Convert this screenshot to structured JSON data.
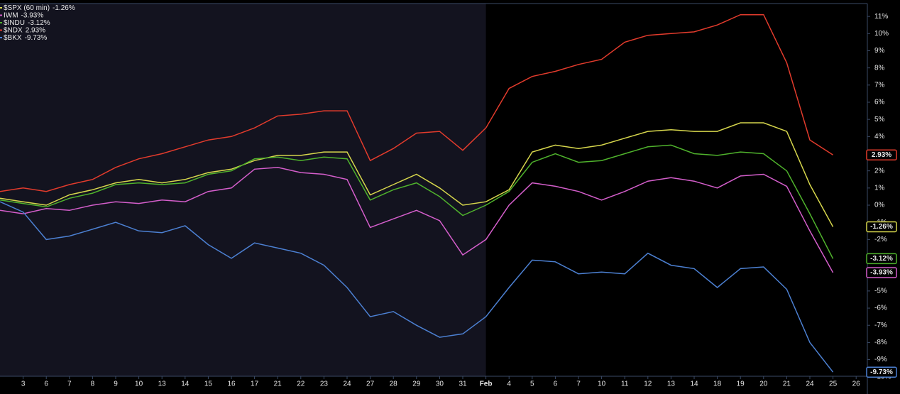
{
  "chart_data": {
    "type": "line",
    "categories": [
      null,
      "3",
      "6",
      "7",
      "8",
      "9",
      "10",
      "13",
      "14",
      "15",
      "16",
      "17",
      "21",
      "22",
      "23",
      "24",
      "27",
      "28",
      "29",
      "30",
      "31",
      "Feb",
      "4",
      "5",
      "6",
      "7",
      "10",
      "11",
      "12",
      "13",
      "14",
      "18",
      "19",
      "20",
      "21",
      "24",
      "25",
      "26"
    ],
    "series": [
      {
        "name": "$SPX (60 min)",
        "color": "#d6d64c",
        "values": [
          0.4,
          0.2,
          0,
          0.6,
          0.9,
          1.3,
          1.5,
          1.3,
          1.5,
          1.9,
          2.1,
          2.6,
          2.9,
          2.9,
          3.1,
          3.1,
          0.6,
          1.2,
          1.8,
          1.0,
          0,
          0.2,
          0.9,
          3.1,
          3.5,
          3.3,
          3.5,
          3.9,
          4.3,
          4.4,
          4.3,
          4.3,
          4.8,
          4.8,
          4.3,
          1.2,
          -1.26,
          null
        ],
        "value_labels": [
          null,
          null,
          null,
          null,
          null,
          null,
          null,
          null,
          null,
          null,
          null,
          null,
          null,
          null,
          null,
          null,
          null,
          null,
          null,
          null,
          null,
          null,
          null,
          null,
          null,
          null,
          null,
          null,
          null,
          null,
          null,
          null,
          null,
          null,
          null,
          null,
          "-1.26%",
          null
        ]
      },
      {
        "name": "IWM",
        "color": "#d45ecb",
        "values": [
          -0.3,
          -0.5,
          -0.2,
          -0.3,
          0,
          0.2,
          0.1,
          0.3,
          0.2,
          0.8,
          1.0,
          2.1,
          2.2,
          1.9,
          1.8,
          1.5,
          -1.3,
          -0.8,
          -0.3,
          -0.9,
          -2.9,
          -2.0,
          0,
          1.3,
          1.1,
          0.8,
          0.3,
          0.8,
          1.4,
          1.6,
          1.4,
          1.0,
          1.7,
          1.8,
          1.1,
          -1.5,
          -3.93,
          null
        ],
        "value_labels": [
          null,
          null,
          null,
          null,
          null,
          null,
          null,
          null,
          null,
          null,
          null,
          null,
          null,
          null,
          null,
          null,
          null,
          null,
          null,
          null,
          null,
          null,
          null,
          null,
          null,
          null,
          null,
          null,
          null,
          null,
          null,
          null,
          null,
          null,
          null,
          null,
          "-3.93%",
          null
        ]
      },
      {
        "name": "$INDU",
        "color": "#4fb22c",
        "values": [
          0.3,
          0.1,
          -0.1,
          0.4,
          0.7,
          1.2,
          1.3,
          1.2,
          1.3,
          1.8,
          2.0,
          2.7,
          2.8,
          2.6,
          2.8,
          2.7,
          0.3,
          0.9,
          1.3,
          0.5,
          -0.6,
          0,
          0.8,
          2.5,
          3.0,
          2.5,
          2.6,
          3.0,
          3.4,
          3.5,
          3.0,
          2.9,
          3.1,
          3.0,
          2.0,
          -0.5,
          -3.12,
          null
        ],
        "value_labels": [
          null,
          null,
          null,
          null,
          null,
          null,
          null,
          null,
          null,
          null,
          null,
          null,
          null,
          null,
          null,
          null,
          null,
          null,
          null,
          null,
          null,
          null,
          null,
          null,
          null,
          null,
          null,
          null,
          null,
          null,
          null,
          null,
          null,
          null,
          null,
          null,
          "-3.12%",
          null
        ]
      },
      {
        "name": "$NDX",
        "color": "#e23b2c",
        "values": [
          0.8,
          1.0,
          0.8,
          1.2,
          1.5,
          2.2,
          2.7,
          3.0,
          3.4,
          3.8,
          4.0,
          4.5,
          5.2,
          5.3,
          5.5,
          5.5,
          2.6,
          3.3,
          4.2,
          4.3,
          3.2,
          4.5,
          6.8,
          7.5,
          7.8,
          8.2,
          8.5,
          9.5,
          9.9,
          10.0,
          10.1,
          10.5,
          11.1,
          11.1,
          8.3,
          3.8,
          2.93,
          null
        ],
        "value_labels": [
          null,
          null,
          null,
          null,
          null,
          null,
          null,
          null,
          null,
          null,
          null,
          null,
          null,
          null,
          null,
          null,
          null,
          null,
          null,
          null,
          null,
          null,
          null,
          null,
          null,
          null,
          null,
          null,
          null,
          null,
          null,
          null,
          null,
          null,
          null,
          null,
          "2.93%",
          null
        ]
      },
      {
        "name": "$BKX",
        "color": "#4c80d2",
        "values": [
          0.2,
          -0.4,
          -2.0,
          -1.8,
          -1.4,
          -1.0,
          -1.5,
          -1.6,
          -1.2,
          -2.3,
          -3.1,
          -2.2,
          -2.5,
          -2.8,
          -3.5,
          -4.8,
          -6.5,
          -6.2,
          -7.0,
          -7.7,
          -7.5,
          -6.5,
          -4.8,
          -3.2,
          -3.3,
          -4.0,
          -3.9,
          -4.0,
          -2.8,
          -3.5,
          -3.7,
          -4.8,
          -3.7,
          -3.6,
          -4.9,
          -8.0,
          -9.73,
          null
        ],
        "value_labels": [
          null,
          null,
          null,
          null,
          null,
          null,
          null,
          null,
          null,
          null,
          null,
          null,
          null,
          null,
          null,
          null,
          null,
          null,
          null,
          null,
          null,
          null,
          null,
          null,
          null,
          null,
          null,
          null,
          null,
          null,
          null,
          null,
          null,
          null,
          null,
          null,
          "-9.73%",
          null
        ]
      }
    ],
    "ylim": [
      -9.97,
      11.75
    ],
    "yticks": [
      {
        "value": -10,
        "label": "-10%"
      },
      {
        "value": -9,
        "label": "-9%"
      },
      {
        "value": -8,
        "label": "-8%"
      },
      {
        "value": -7,
        "label": "-7%"
      },
      {
        "value": -6,
        "label": "-6%"
      },
      {
        "value": -5,
        "label": "-5%"
      },
      {
        "value": -4,
        "label": "-4%"
      },
      {
        "value": -3,
        "label": "-3%"
      },
      {
        "value": -2,
        "label": "-2%"
      },
      {
        "value": -1,
        "label": "-1%"
      },
      {
        "value": 0,
        "label": "0%"
      },
      {
        "value": 1,
        "label": "1%"
      },
      {
        "value": 2,
        "label": "2%"
      },
      {
        "value": 3,
        "label": "3%"
      },
      {
        "value": 4,
        "label": "4%"
      },
      {
        "value": 5,
        "label": "5%"
      },
      {
        "value": 6,
        "label": "6%"
      },
      {
        "value": 7,
        "label": "7%"
      },
      {
        "value": 8,
        "label": "8%"
      },
      {
        "value": 9,
        "label": "9%"
      },
      {
        "value": 10,
        "label": "10%"
      },
      {
        "value": 11,
        "label": "11%"
      }
    ],
    "legend": "top-left"
  }
}
